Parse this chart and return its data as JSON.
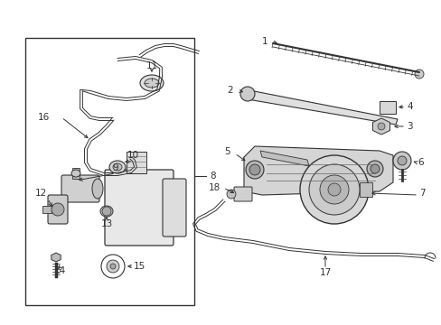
{
  "bg_color": "#ffffff",
  "line_color": "#333333",
  "gray": "#666666",
  "light_gray": "#aaaaaa",
  "fig_w": 4.89,
  "fig_h": 3.6,
  "dpi": 100
}
